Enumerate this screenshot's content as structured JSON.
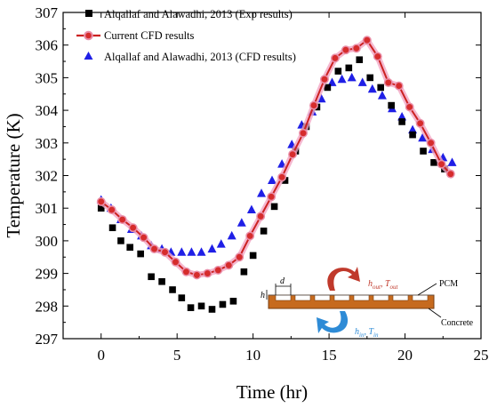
{
  "chart_data": {
    "type": "line",
    "xlabel": "Time (hr)",
    "ylabel": "Temperature (K)",
    "xlim": [
      -2.5,
      25
    ],
    "ylim": [
      297,
      307
    ],
    "xticks": [
      0,
      5,
      10,
      15,
      20,
      25
    ],
    "yticks": [
      297,
      298,
      299,
      300,
      301,
      302,
      303,
      304,
      305,
      306,
      307
    ],
    "grid": false,
    "legend_position": "top-left",
    "series": [
      {
        "name": "Alqallaf and Alawadhi, 2013  (Exp results)",
        "marker": "square",
        "color": "#000000",
        "x": [
          0,
          0.75,
          1.3,
          1.9,
          2.6,
          3.3,
          4.0,
          4.7,
          5.3,
          5.9,
          6.6,
          7.3,
          8.0,
          8.7,
          9.4,
          10.0,
          10.7,
          11.4,
          12.1,
          12.8,
          13.5,
          14.2,
          14.9,
          15.6,
          16.3,
          17.0,
          17.7,
          18.4,
          19.1,
          19.8,
          20.5,
          21.2,
          21.9,
          22.6
        ],
        "y": [
          301.0,
          300.4,
          300.0,
          299.8,
          299.6,
          298.9,
          298.75,
          298.5,
          298.25,
          297.95,
          298.0,
          297.9,
          298.05,
          298.15,
          299.05,
          299.55,
          300.3,
          301.05,
          301.85,
          302.75,
          303.5,
          304.1,
          304.7,
          305.2,
          305.3,
          305.55,
          305.0,
          304.7,
          304.15,
          303.65,
          303.25,
          302.75,
          302.4,
          302.2
        ]
      },
      {
        "name": "Current CFD results",
        "marker": "circle-line",
        "color": "#cc2222",
        "x": [
          0,
          0.7,
          1.4,
          2.1,
          2.8,
          3.5,
          4.2,
          4.9,
          5.6,
          6.3,
          7.0,
          7.7,
          8.4,
          9.1,
          9.8,
          10.5,
          11.2,
          11.9,
          12.6,
          13.3,
          14.0,
          14.7,
          15.4,
          16.1,
          16.8,
          17.5,
          18.2,
          18.9,
          19.6,
          20.3,
          21.0,
          21.7,
          22.4,
          23.0
        ],
        "y": [
          301.2,
          300.95,
          300.65,
          300.4,
          300.1,
          299.75,
          299.65,
          299.35,
          299.05,
          298.95,
          299.0,
          299.1,
          299.25,
          299.5,
          300.15,
          300.75,
          301.35,
          301.95,
          302.65,
          303.3,
          304.15,
          304.95,
          305.6,
          305.85,
          305.9,
          306.15,
          305.65,
          304.85,
          304.75,
          304.1,
          303.6,
          303.0,
          302.35,
          302.05
        ]
      },
      {
        "name": "Alqallaf and Alawadhi, 2013 (CFD results)",
        "marker": "triangle",
        "color": "#1f1fe6",
        "x": [
          0,
          0.65,
          1.3,
          2.0,
          2.65,
          3.3,
          4.0,
          4.6,
          5.3,
          5.95,
          6.6,
          7.3,
          7.9,
          8.6,
          9.25,
          9.9,
          10.55,
          11.25,
          11.9,
          12.55,
          13.2,
          13.9,
          14.5,
          15.2,
          15.85,
          16.5,
          17.2,
          17.85,
          18.5,
          19.15,
          19.8,
          20.5,
          21.15,
          21.8,
          22.5,
          23.1
        ],
        "y": [
          301.25,
          301.0,
          300.65,
          300.35,
          300.15,
          299.85,
          299.75,
          299.65,
          299.65,
          299.65,
          299.65,
          299.75,
          299.9,
          300.15,
          300.55,
          300.95,
          301.45,
          301.85,
          302.35,
          302.95,
          303.55,
          303.95,
          304.35,
          304.85,
          304.95,
          305.0,
          304.85,
          304.65,
          304.45,
          304.05,
          303.8,
          303.4,
          303.15,
          302.8,
          302.55,
          302.4
        ]
      }
    ]
  },
  "inset": {
    "labels": {
      "d": "d",
      "h": "h",
      "pcm": "PCM",
      "concrete": "Concrete",
      "h_out": "h",
      "h_out_sub": "out",
      "t_out": "T",
      "t_out_sub": "out",
      "h_in": "h",
      "h_in_sub": "in",
      "t_in": "T",
      "t_in_sub": "in",
      "sep": ", "
    },
    "colors": {
      "concrete": "#c66a1e",
      "pcm_cell": "#ffffff",
      "arrow_out": "#c0392b",
      "arrow_in": "#2e8bd6",
      "label_out": "#c0392b",
      "label_in": "#2e8bd6"
    }
  }
}
